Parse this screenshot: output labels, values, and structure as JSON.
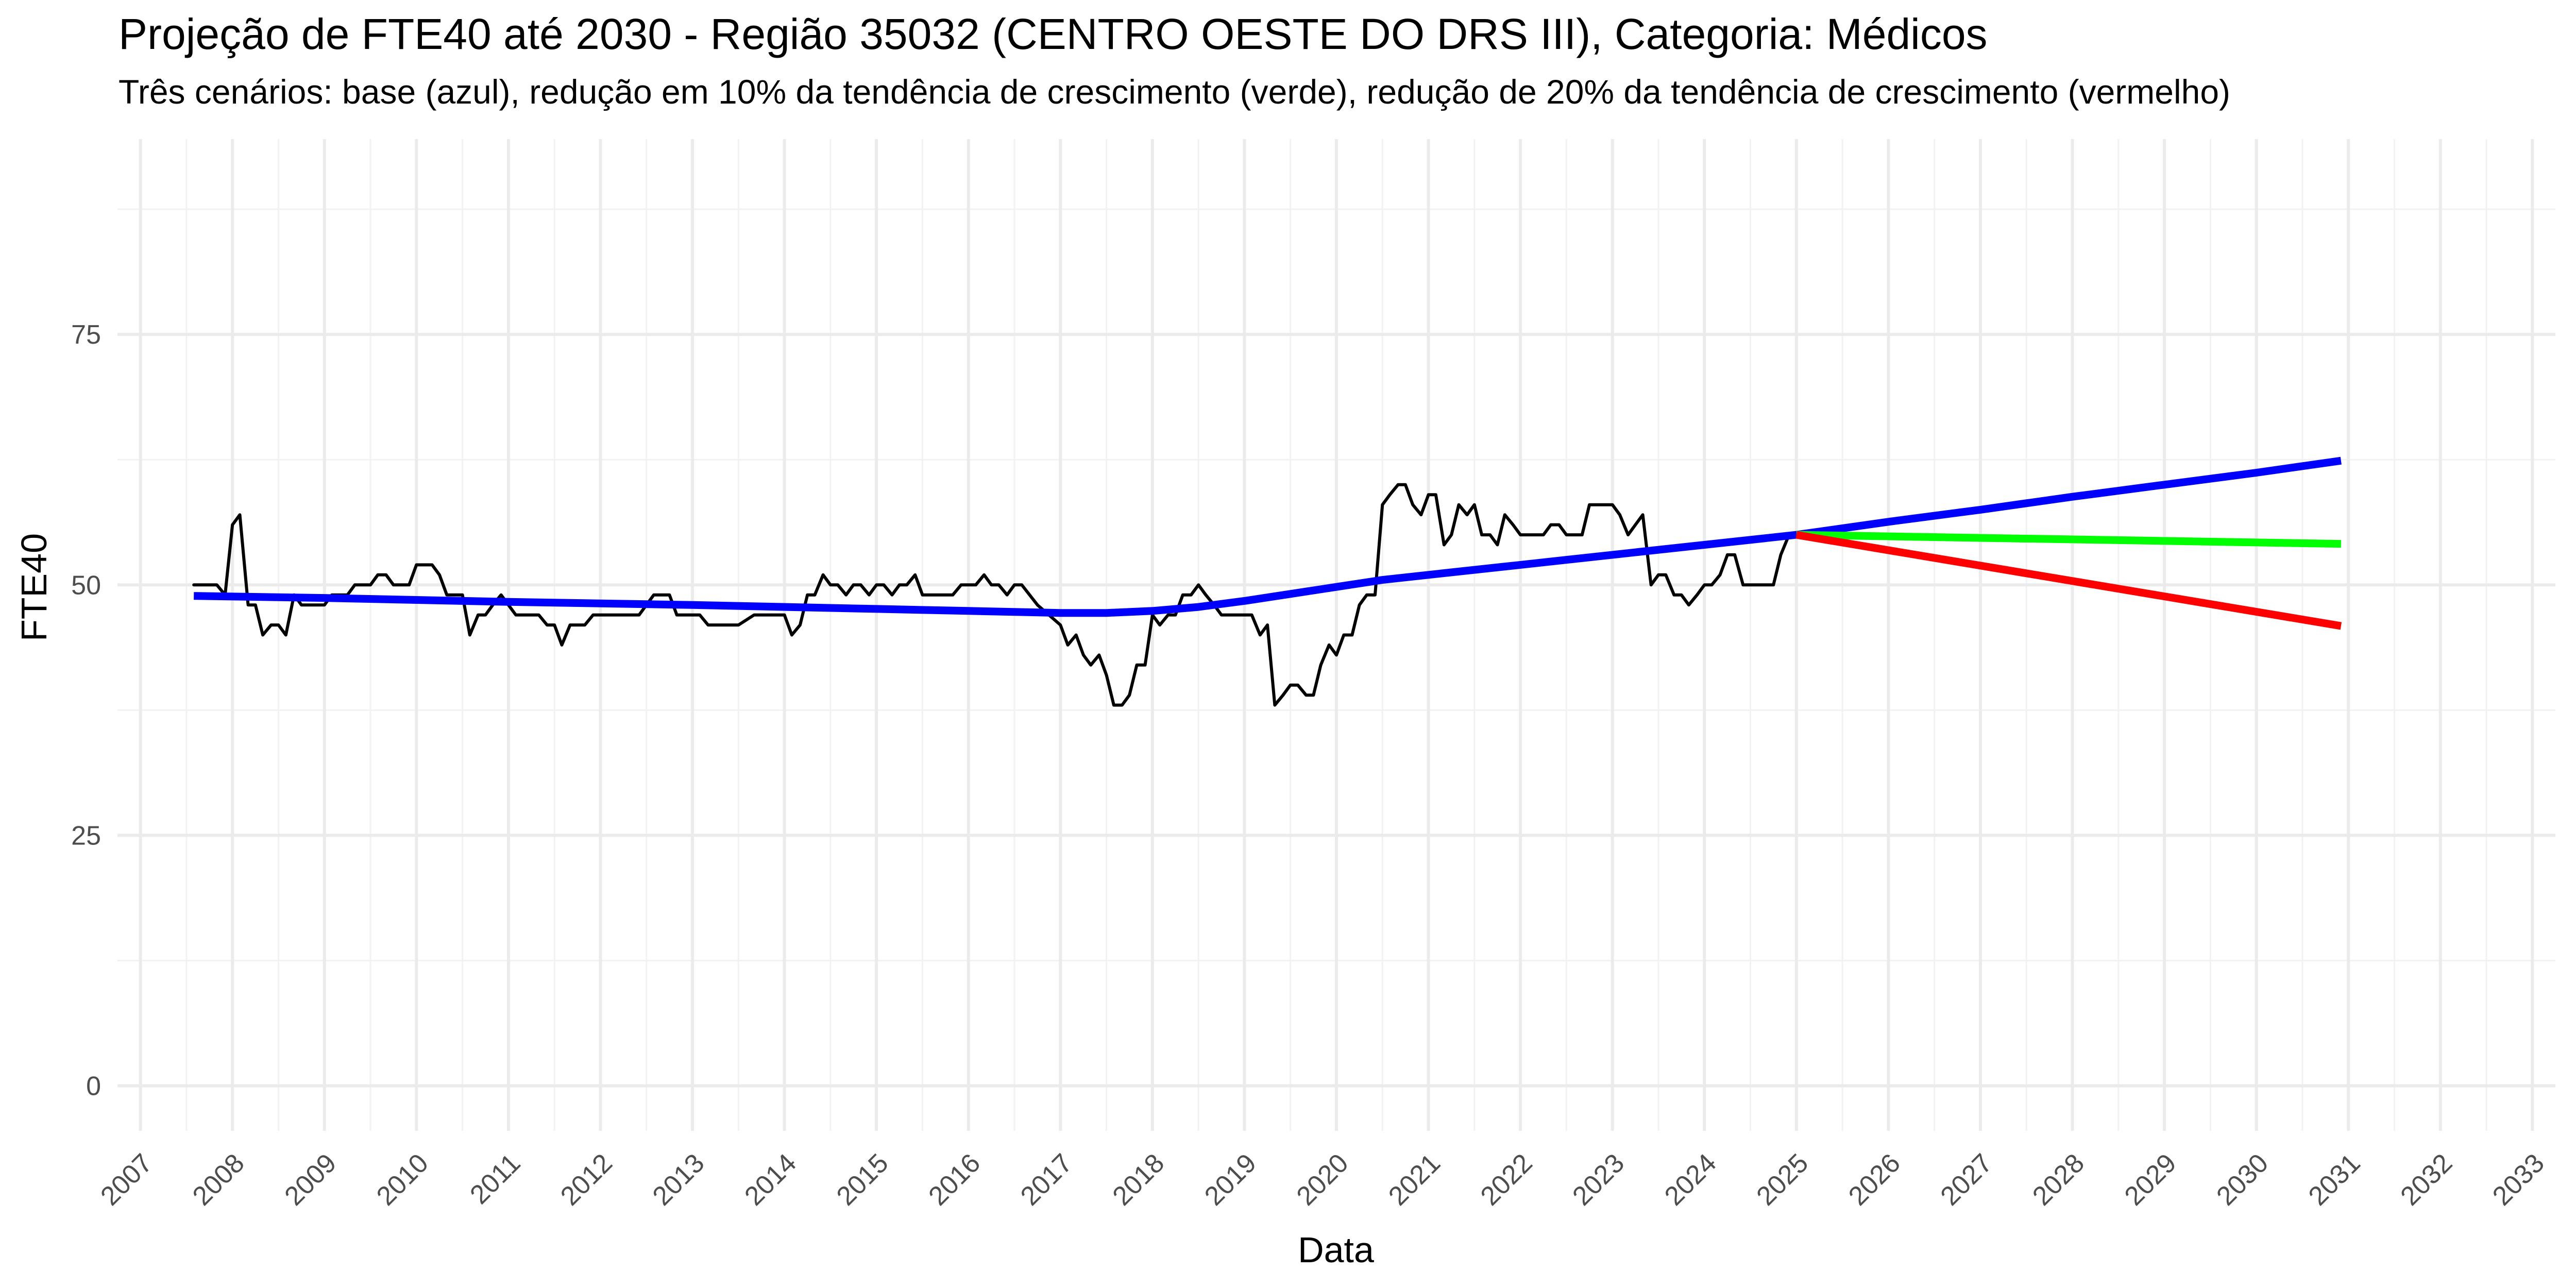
{
  "chart_data": {
    "type": "line",
    "title": "Projeção de FTE40 até 2030 - Região 35032 (CENTRO OESTE DO DRS III), Categoria: Médicos",
    "subtitle": "Três cenários: base (azul), redução em 10% da tendência de crescimento (verde), redução de 20% da tendência de crescimento (vermelho)",
    "xlabel": "Data",
    "ylabel": "FTE40",
    "xlim": [
      2006.75,
      2033.25
    ],
    "ylim": [
      -4.5,
      94.5
    ],
    "x_ticks": [
      2007,
      2008,
      2009,
      2010,
      2011,
      2012,
      2013,
      2014,
      2015,
      2016,
      2017,
      2018,
      2019,
      2020,
      2021,
      2022,
      2023,
      2024,
      2025,
      2026,
      2027,
      2028,
      2029,
      2030,
      2031,
      2032,
      2033
    ],
    "x_tick_labels": [
      "2007",
      "2008",
      "2009",
      "2010",
      "2011",
      "2012",
      "2013",
      "2014",
      "2015",
      "2016",
      "2017",
      "2018",
      "2019",
      "2020",
      "2021",
      "2022",
      "2023",
      "2024",
      "2025",
      "2026",
      "2027",
      "2028",
      "2029",
      "2030",
      "2031",
      "2032",
      "2033"
    ],
    "y_ticks": [
      0,
      25,
      50,
      75
    ],
    "y_tick_labels": [
      "0",
      "25",
      "50",
      "75"
    ],
    "grid": true,
    "legend": "none",
    "series": [
      {
        "color": "#000000",
        "points": [
          [
            2007.58,
            50
          ],
          [
            2007.83,
            50
          ],
          [
            2007.92,
            49
          ],
          [
            2008.0,
            56
          ],
          [
            2008.08,
            57
          ],
          [
            2008.17,
            48
          ],
          [
            2008.25,
            48
          ],
          [
            2008.33,
            45
          ],
          [
            2008.42,
            46
          ],
          [
            2008.5,
            46
          ],
          [
            2008.58,
            45
          ],
          [
            2008.67,
            49
          ],
          [
            2008.75,
            48
          ],
          [
            2009.0,
            48
          ],
          [
            2009.08,
            49
          ],
          [
            2009.25,
            49
          ],
          [
            2009.33,
            50
          ],
          [
            2009.5,
            50
          ],
          [
            2009.58,
            51
          ],
          [
            2009.67,
            51
          ],
          [
            2009.75,
            50
          ],
          [
            2009.92,
            50
          ],
          [
            2010.0,
            52
          ],
          [
            2010.17,
            52
          ],
          [
            2010.25,
            51
          ],
          [
            2010.33,
            49
          ],
          [
            2010.5,
            49
          ],
          [
            2010.58,
            45
          ],
          [
            2010.67,
            47
          ],
          [
            2010.75,
            47
          ],
          [
            2010.83,
            48
          ],
          [
            2010.92,
            49
          ],
          [
            2011.0,
            48
          ],
          [
            2011.08,
            47
          ],
          [
            2011.33,
            47
          ],
          [
            2011.42,
            46
          ],
          [
            2011.5,
            46
          ],
          [
            2011.58,
            44
          ],
          [
            2011.67,
            46
          ],
          [
            2011.83,
            46
          ],
          [
            2011.92,
            47
          ],
          [
            2012.42,
            47
          ],
          [
            2012.58,
            49
          ],
          [
            2012.75,
            49
          ],
          [
            2012.83,
            47
          ],
          [
            2013.08,
            47
          ],
          [
            2013.17,
            46
          ],
          [
            2013.5,
            46
          ],
          [
            2013.67,
            47
          ],
          [
            2014.0,
            47
          ],
          [
            2014.08,
            45
          ],
          [
            2014.17,
            46
          ],
          [
            2014.25,
            49
          ],
          [
            2014.33,
            49
          ],
          [
            2014.42,
            51
          ],
          [
            2014.5,
            50
          ],
          [
            2014.58,
            50
          ],
          [
            2014.67,
            49
          ],
          [
            2014.75,
            50
          ],
          [
            2014.83,
            50
          ],
          [
            2014.92,
            49
          ],
          [
            2015.0,
            50
          ],
          [
            2015.08,
            50
          ],
          [
            2015.17,
            49
          ],
          [
            2015.25,
            50
          ],
          [
            2015.33,
            50
          ],
          [
            2015.42,
            51
          ],
          [
            2015.5,
            49
          ],
          [
            2015.83,
            49
          ],
          [
            2015.92,
            50
          ],
          [
            2016.08,
            50
          ],
          [
            2016.17,
            51
          ],
          [
            2016.25,
            50
          ],
          [
            2016.33,
            50
          ],
          [
            2016.42,
            49
          ],
          [
            2016.5,
            50
          ],
          [
            2016.58,
            50
          ],
          [
            2016.75,
            48
          ],
          [
            2017.0,
            46
          ],
          [
            2017.08,
            44
          ],
          [
            2017.17,
            45
          ],
          [
            2017.25,
            43
          ],
          [
            2017.33,
            42
          ],
          [
            2017.42,
            43
          ],
          [
            2017.5,
            41
          ],
          [
            2017.58,
            38
          ],
          [
            2017.67,
            38
          ],
          [
            2017.75,
            39
          ],
          [
            2017.83,
            42
          ],
          [
            2017.92,
            42
          ],
          [
            2018.0,
            47
          ],
          [
            2018.08,
            46
          ],
          [
            2018.17,
            47
          ],
          [
            2018.25,
            47
          ],
          [
            2018.33,
            49
          ],
          [
            2018.42,
            49
          ],
          [
            2018.5,
            50
          ],
          [
            2018.58,
            49
          ],
          [
            2018.67,
            48
          ],
          [
            2018.75,
            47
          ],
          [
            2019.08,
            47
          ],
          [
            2019.17,
            45
          ],
          [
            2019.25,
            46
          ],
          [
            2019.33,
            38
          ],
          [
            2019.42,
            39
          ],
          [
            2019.5,
            40
          ],
          [
            2019.58,
            40
          ],
          [
            2019.67,
            39
          ],
          [
            2019.75,
            39
          ],
          [
            2019.83,
            42
          ],
          [
            2019.92,
            44
          ],
          [
            2020.0,
            43
          ],
          [
            2020.08,
            45
          ],
          [
            2020.17,
            45
          ],
          [
            2020.25,
            48
          ],
          [
            2020.33,
            49
          ],
          [
            2020.42,
            49
          ],
          [
            2020.5,
            58
          ],
          [
            2020.58,
            59
          ],
          [
            2020.67,
            60
          ],
          [
            2020.75,
            60
          ],
          [
            2020.83,
            58
          ],
          [
            2020.92,
            57
          ],
          [
            2021.0,
            59
          ],
          [
            2021.08,
            59
          ],
          [
            2021.17,
            54
          ],
          [
            2021.25,
            55
          ],
          [
            2021.33,
            58
          ],
          [
            2021.42,
            57
          ],
          [
            2021.5,
            58
          ],
          [
            2021.58,
            55
          ],
          [
            2021.67,
            55
          ],
          [
            2021.75,
            54
          ],
          [
            2021.83,
            57
          ],
          [
            2021.92,
            56
          ],
          [
            2022.0,
            55
          ],
          [
            2022.25,
            55
          ],
          [
            2022.33,
            56
          ],
          [
            2022.42,
            56
          ],
          [
            2022.5,
            55
          ],
          [
            2022.67,
            55
          ],
          [
            2022.75,
            58
          ],
          [
            2023.0,
            58
          ],
          [
            2023.08,
            57
          ],
          [
            2023.17,
            55
          ],
          [
            2023.25,
            56
          ],
          [
            2023.33,
            57
          ],
          [
            2023.42,
            50
          ],
          [
            2023.5,
            51
          ],
          [
            2023.58,
            51
          ],
          [
            2023.67,
            49
          ],
          [
            2023.75,
            49
          ],
          [
            2023.83,
            48
          ],
          [
            2023.92,
            49
          ],
          [
            2024.0,
            50
          ],
          [
            2024.08,
            50
          ],
          [
            2024.17,
            51
          ],
          [
            2024.25,
            53
          ],
          [
            2024.33,
            53
          ],
          [
            2024.42,
            50
          ],
          [
            2024.75,
            50
          ],
          [
            2024.83,
            53
          ],
          [
            2024.92,
            55
          ]
        ]
      },
      {
        "color": "#0000ff",
        "points": [
          [
            2007.58,
            48.9
          ],
          [
            2009.0,
            48.7
          ],
          [
            2011.0,
            48.3
          ],
          [
            2013.0,
            48.0
          ],
          [
            2015.0,
            47.6
          ],
          [
            2016.0,
            47.4
          ],
          [
            2017.0,
            47.2
          ],
          [
            2017.5,
            47.2
          ],
          [
            2018.0,
            47.4
          ],
          [
            2018.5,
            47.8
          ],
          [
            2019.0,
            48.4
          ],
          [
            2019.5,
            49.1
          ],
          [
            2020.0,
            49.8
          ],
          [
            2020.5,
            50.5
          ],
          [
            2021.0,
            51.0
          ],
          [
            2022.0,
            52.0
          ],
          [
            2023.0,
            53.0
          ],
          [
            2024.0,
            54.0
          ],
          [
            2025.0,
            55.0
          ],
          [
            2026.0,
            56.3
          ],
          [
            2027.0,
            57.5
          ],
          [
            2028.0,
            58.8
          ],
          [
            2029.0,
            60.0
          ],
          [
            2030.0,
            61.2
          ],
          [
            2030.92,
            62.4
          ]
        ]
      },
      {
        "color": "#00ff00",
        "points": [
          [
            2025.0,
            55.0
          ],
          [
            2030.92,
            54.1
          ]
        ]
      },
      {
        "color": "#ff0000",
        "points": [
          [
            2025.0,
            55.0
          ],
          [
            2030.92,
            45.9
          ]
        ]
      }
    ]
  }
}
